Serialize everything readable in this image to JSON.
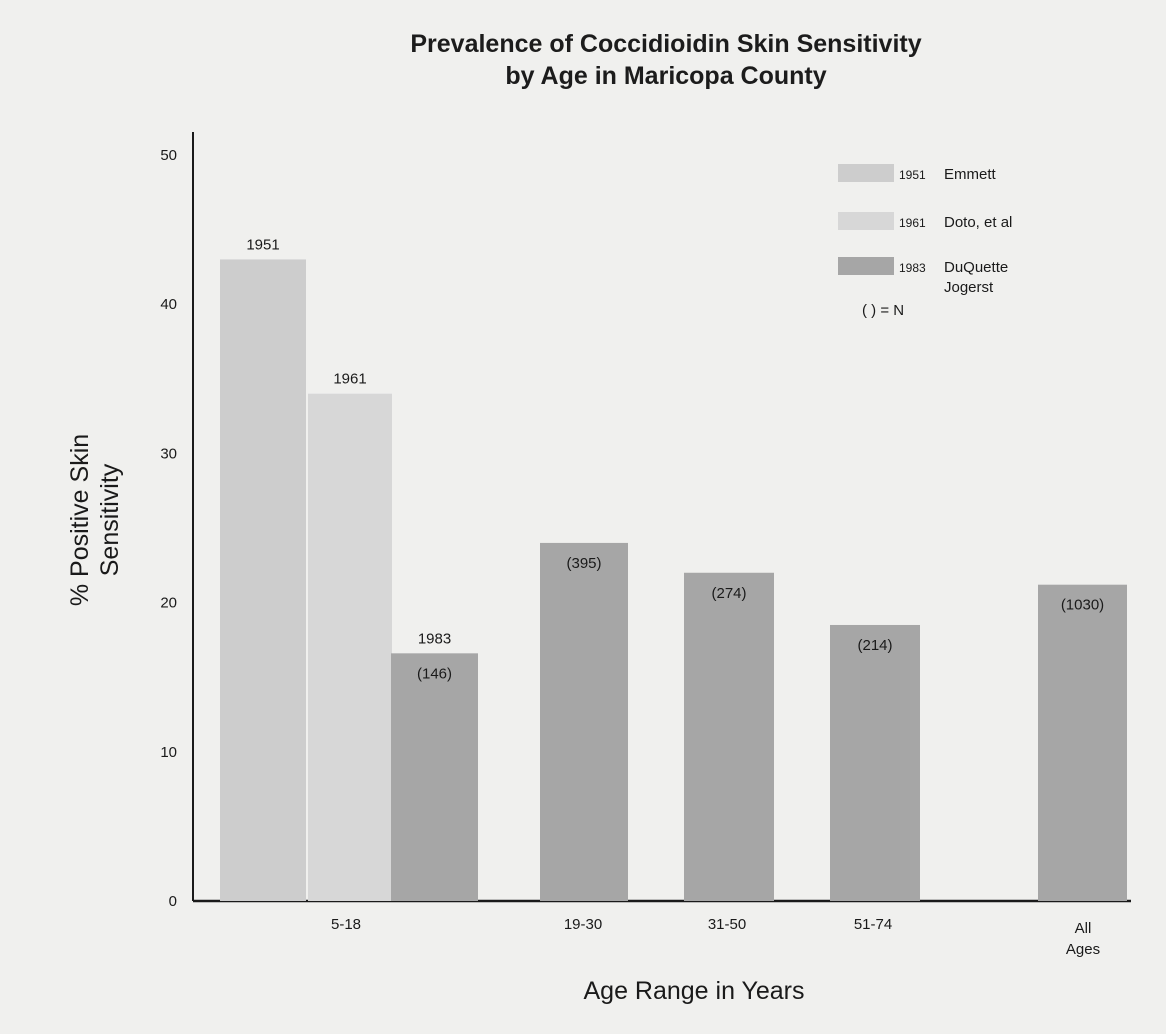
{
  "chart_data": {
    "type": "bar",
    "title": "Prevalence of Coccidioidin Skin Sensitivity",
    "subtitle": "by Age in Maricopa County",
    "xlabel": "Age Range in Years",
    "ylabel_line1": "% Positive Skin",
    "ylabel_line2": "Sensitivity",
    "ylim": [
      0,
      50
    ],
    "yticks": [
      "0",
      "10",
      "20",
      "30",
      "40",
      "50"
    ],
    "legend_position": "top-right",
    "legend_note": "( ) =  N",
    "series": [
      {
        "year": "1951",
        "name": "Emmett",
        "color": "#cdcdcd"
      },
      {
        "year": "1961",
        "name": "Doto, et al",
        "color": "#d7d7d7"
      },
      {
        "year": "1983",
        "name_line1": "DuQuette",
        "name_line2": "Jogerst",
        "color": "#a6a6a6"
      }
    ],
    "groups": [
      {
        "category": "5-18",
        "bars": [
          {
            "series": 0,
            "value": 43,
            "top_label": "1951"
          },
          {
            "series": 1,
            "value": 34,
            "top_label": "1961"
          },
          {
            "series": 2,
            "value": 16.6,
            "top_label": "1983",
            "n_label": "(146)"
          }
        ]
      },
      {
        "category": "19-30",
        "bars": [
          {
            "series": 2,
            "value": 24,
            "n_label": "(395)"
          }
        ]
      },
      {
        "category": "31-50",
        "bars": [
          {
            "series": 2,
            "value": 22,
            "n_label": "(274)"
          }
        ]
      },
      {
        "category": "51-74",
        "bars": [
          {
            "series": 2,
            "value": 18.5,
            "n_label": "(214)"
          }
        ]
      },
      {
        "category_line1": "All",
        "category_line2": "Ages",
        "bars": [
          {
            "series": 2,
            "value": 21.2,
            "n_label": "(1030)"
          }
        ]
      }
    ]
  }
}
